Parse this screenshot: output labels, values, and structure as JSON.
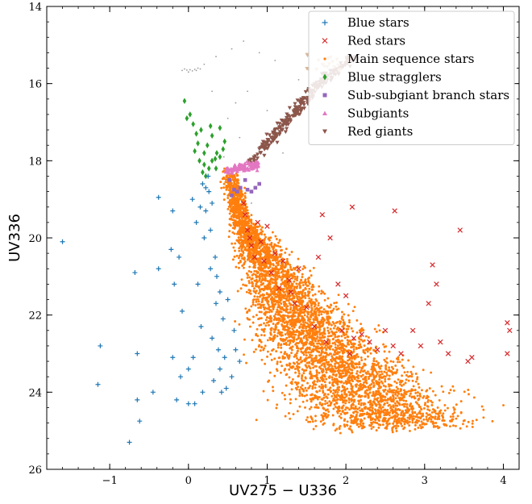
{
  "chart_data": {
    "type": "scatter",
    "title": "",
    "xlabel": "UV275 − U336",
    "ylabel": "UV336",
    "xlim": [
      -1.8,
      4.2
    ],
    "ylim": [
      26,
      14
    ],
    "y_inverted": true,
    "grid": false,
    "legend_position": "top-right",
    "xticks": [
      -1,
      0,
      1,
      2,
      3,
      4
    ],
    "yticks": [
      14,
      16,
      18,
      20,
      22,
      24,
      26
    ],
    "background_points": {
      "color": "#9a9a9a",
      "points": [
        [
          -0.05,
          15.62
        ],
        [
          -0.02,
          15.65
        ],
        [
          0.02,
          15.64
        ],
        [
          0.05,
          15.67
        ],
        [
          0.08,
          15.63
        ],
        [
          0.1,
          15.66
        ],
        [
          0.12,
          15.6
        ],
        [
          0.15,
          15.62
        ],
        [
          -0.08,
          15.66
        ],
        [
          0.0,
          15.7
        ],
        [
          0.2,
          15.5
        ],
        [
          0.35,
          15.3
        ],
        [
          0.55,
          15.1
        ],
        [
          0.7,
          14.9
        ],
        [
          0.9,
          15.2
        ],
        [
          1.1,
          15.4
        ],
        [
          1.4,
          15.9
        ],
        [
          0.6,
          16.5
        ],
        [
          0.75,
          16.2
        ],
        [
          0.5,
          16.9
        ],
        [
          0.65,
          17.4
        ],
        [
          0.45,
          17.9
        ],
        [
          0.6,
          18.6
        ],
        [
          0.8,
          19.1
        ],
        [
          1.2,
          17.8
        ],
        [
          1.0,
          16.7
        ],
        [
          0.3,
          16.2
        ]
      ]
    },
    "series": [
      {
        "name": "Blue stars",
        "marker": "plus",
        "color": "#1f77b4",
        "points": [
          [
            -1.6,
            20.1
          ],
          [
            -1.12,
            22.8
          ],
          [
            -1.15,
            23.8
          ],
          [
            -0.75,
            25.3
          ],
          [
            -0.68,
            20.9
          ],
          [
            -0.65,
            23.0
          ],
          [
            -0.65,
            24.2
          ],
          [
            -0.62,
            24.75
          ],
          [
            -0.38,
            20.8
          ],
          [
            -0.38,
            18.95
          ],
          [
            -0.45,
            24.0
          ],
          [
            -0.2,
            19.3
          ],
          [
            -0.22,
            20.3
          ],
          [
            -0.18,
            21.2
          ],
          [
            -0.2,
            23.1
          ],
          [
            -0.15,
            24.2
          ],
          [
            -0.1,
            23.6
          ],
          [
            -0.12,
            20.5
          ],
          [
            -0.08,
            21.9
          ],
          [
            0.0,
            23.4
          ],
          [
            0.0,
            24.3
          ],
          [
            0.05,
            19.0
          ],
          [
            0.06,
            23.1
          ],
          [
            0.08,
            24.3
          ],
          [
            0.1,
            19.6
          ],
          [
            0.12,
            21.2
          ],
          [
            0.15,
            19.2
          ],
          [
            0.16,
            22.3
          ],
          [
            0.18,
            24.0
          ],
          [
            0.2,
            20.0
          ],
          [
            0.22,
            18.7
          ],
          [
            0.25,
            18.4
          ],
          [
            0.28,
            19.8
          ],
          [
            0.3,
            22.6
          ],
          [
            0.32,
            23.7
          ],
          [
            0.34,
            20.5
          ],
          [
            0.36,
            21.0
          ],
          [
            0.38,
            22.9
          ],
          [
            0.4,
            23.4
          ],
          [
            0.42,
            24.0
          ],
          [
            0.44,
            22.1
          ],
          [
            0.46,
            23.1
          ],
          [
            0.48,
            23.9
          ],
          [
            0.5,
            21.6
          ],
          [
            0.55,
            23.6
          ],
          [
            0.58,
            22.4
          ],
          [
            0.6,
            22.9
          ],
          [
            0.65,
            23.2
          ],
          [
            0.26,
            18.8
          ],
          [
            0.3,
            19.1
          ],
          [
            0.18,
            18.6
          ],
          [
            0.22,
            19.3
          ],
          [
            0.35,
            21.7
          ],
          [
            0.28,
            20.8
          ],
          [
            0.4,
            21.4
          ]
        ]
      },
      {
        "name": "Red stars",
        "marker": "x",
        "color": "#d62728",
        "points": [
          [
            0.7,
            19.1
          ],
          [
            0.72,
            19.4
          ],
          [
            0.75,
            19.8
          ],
          [
            0.78,
            20.0
          ],
          [
            0.8,
            20.2
          ],
          [
            0.84,
            20.5
          ],
          [
            0.88,
            19.6
          ],
          [
            0.92,
            20.1
          ],
          [
            0.96,
            20.6
          ],
          [
            1.0,
            19.7
          ],
          [
            1.05,
            20.9
          ],
          [
            1.1,
            20.4
          ],
          [
            1.15,
            21.3
          ],
          [
            1.2,
            20.6
          ],
          [
            1.28,
            21.1
          ],
          [
            1.35,
            21.7
          ],
          [
            1.4,
            20.8
          ],
          [
            1.5,
            21.8
          ],
          [
            1.6,
            22.3
          ],
          [
            1.65,
            20.5
          ],
          [
            1.75,
            22.7
          ],
          [
            1.8,
            20.0
          ],
          [
            1.9,
            21.2
          ],
          [
            1.95,
            22.4
          ],
          [
            2.0,
            21.5
          ],
          [
            2.05,
            23.0
          ],
          [
            2.1,
            22.6
          ],
          [
            2.2,
            22.5
          ],
          [
            2.3,
            22.7
          ],
          [
            2.4,
            22.9
          ],
          [
            2.5,
            22.4
          ],
          [
            2.6,
            22.8
          ],
          [
            2.62,
            19.3
          ],
          [
            2.7,
            23.0
          ],
          [
            2.85,
            22.4
          ],
          [
            2.95,
            22.8
          ],
          [
            3.05,
            21.7
          ],
          [
            3.1,
            20.7
          ],
          [
            3.15,
            21.2
          ],
          [
            3.2,
            22.7
          ],
          [
            3.3,
            23.0
          ],
          [
            3.45,
            19.8
          ],
          [
            3.55,
            23.2
          ],
          [
            3.6,
            23.1
          ],
          [
            4.05,
            22.2
          ],
          [
            4.05,
            23.0
          ],
          [
            4.08,
            22.4
          ],
          [
            1.7,
            19.4
          ],
          [
            2.08,
            19.2
          ],
          [
            1.3,
            21.4
          ]
        ]
      },
      {
        "name": "Main sequence stars",
        "marker": "dot",
        "color": "#ff7f0e",
        "points": []
      },
      {
        "name": "Blue stragglers",
        "marker": "diamond",
        "color": "#2ca02c",
        "points": [
          [
            -0.05,
            16.45
          ],
          [
            0.02,
            16.8
          ],
          [
            -0.02,
            16.9
          ],
          [
            0.06,
            17.05
          ],
          [
            0.1,
            17.3
          ],
          [
            0.12,
            17.55
          ],
          [
            0.16,
            17.2
          ],
          [
            0.2,
            17.8
          ],
          [
            0.24,
            17.6
          ],
          [
            0.28,
            17.1
          ],
          [
            0.3,
            17.35
          ],
          [
            0.34,
            17.95
          ],
          [
            0.36,
            17.8
          ],
          [
            0.4,
            17.15
          ],
          [
            0.44,
            17.7
          ],
          [
            0.46,
            17.5
          ],
          [
            0.2,
            18.1
          ],
          [
            0.22,
            18.4
          ],
          [
            0.26,
            18.2
          ],
          [
            0.3,
            18.0
          ],
          [
            0.35,
            18.2
          ],
          [
            0.4,
            17.9
          ],
          [
            0.14,
            18.0
          ],
          [
            0.18,
            18.3
          ],
          [
            0.08,
            17.75
          ]
        ]
      },
      {
        "name": "Sub-subgiant branch stars",
        "marker": "square",
        "color": "#9467bd",
        "points": [
          [
            0.52,
            18.5
          ],
          [
            0.58,
            18.75
          ],
          [
            0.62,
            18.8
          ],
          [
            0.66,
            18.7
          ],
          [
            0.72,
            18.5
          ],
          [
            0.75,
            18.75
          ],
          [
            0.8,
            18.8
          ],
          [
            0.85,
            18.7
          ],
          [
            0.9,
            18.6
          ],
          [
            0.55,
            18.9
          ]
        ]
      },
      {
        "name": "Subgiants",
        "marker": "triangle-up",
        "color": "#e377c2",
        "points": []
      },
      {
        "name": "Red giants",
        "marker": "triangle-down",
        "color": "#8c564b",
        "points": []
      }
    ]
  }
}
